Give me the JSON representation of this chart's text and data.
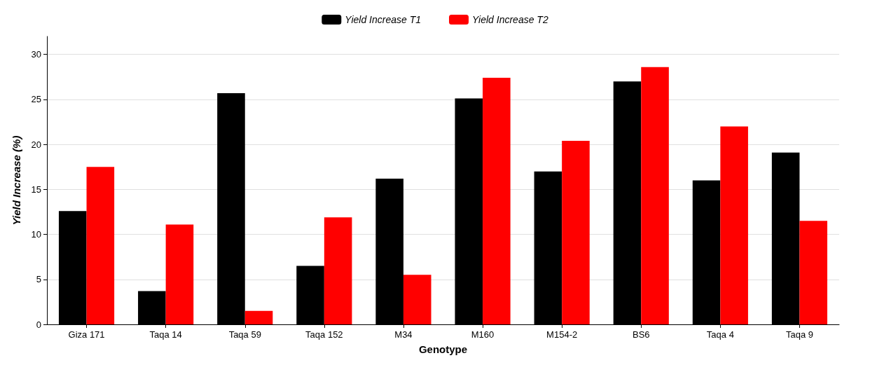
{
  "chart_data": {
    "type": "bar",
    "xlabel": "Genotype",
    "ylabel": "Yield Increase (%)",
    "categories": [
      "Giza 171",
      "Taqa 14",
      "Taqa 59",
      "Taqa 152",
      "M34",
      "M160",
      "M154-2",
      "BS6",
      "Taqa 4",
      "Taqa 9"
    ],
    "series": [
      {
        "name": "Yield Increase T1",
        "color": "#000000",
        "values": [
          12.6,
          3.7,
          25.7,
          6.5,
          16.2,
          25.1,
          17.0,
          27.0,
          16.0,
          19.1
        ]
      },
      {
        "name": "Yield Increase T2",
        "color": "#ff0000",
        "values": [
          17.5,
          11.1,
          1.5,
          11.9,
          5.5,
          27.4,
          20.4,
          28.6,
          22.0,
          11.5
        ]
      }
    ],
    "ylim": [
      0,
      32
    ],
    "yticks": [
      0,
      5,
      10,
      15,
      20,
      25,
      30
    ],
    "grid": "y",
    "legend": "top"
  }
}
